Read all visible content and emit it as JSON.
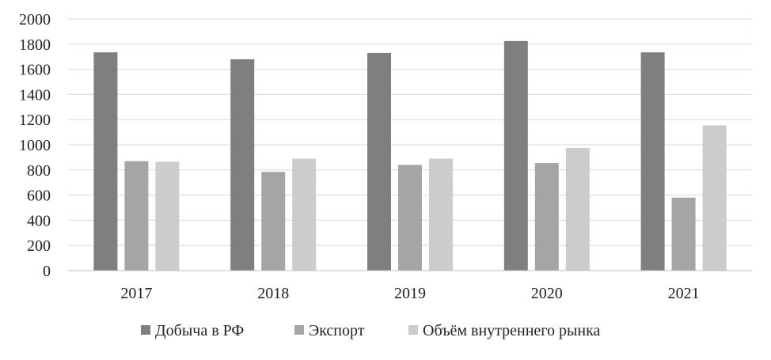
{
  "chart_data": {
    "type": "bar",
    "title": "",
    "xlabel": "",
    "ylabel": "",
    "categories": [
      "2017",
      "2018",
      "2019",
      "2020",
      "2021"
    ],
    "ylim": [
      0,
      2000
    ],
    "yticks": [
      0,
      200,
      400,
      600,
      800,
      1000,
      1200,
      1400,
      1600,
      1800,
      2000
    ],
    "grid": true,
    "legend_position": "bottom",
    "series": [
      {
        "name": "Добыча в РФ",
        "color": "#7f7f7f",
        "values": [
          1735,
          1680,
          1730,
          1825,
          1735
        ]
      },
      {
        "name": "Экспорт",
        "color": "#a5a5a5",
        "values": [
          870,
          785,
          840,
          855,
          580
        ]
      },
      {
        "name": "Объём внутреннего рынка",
        "color": "#cccccc",
        "values": [
          865,
          890,
          890,
          975,
          1155
        ]
      }
    ]
  }
}
